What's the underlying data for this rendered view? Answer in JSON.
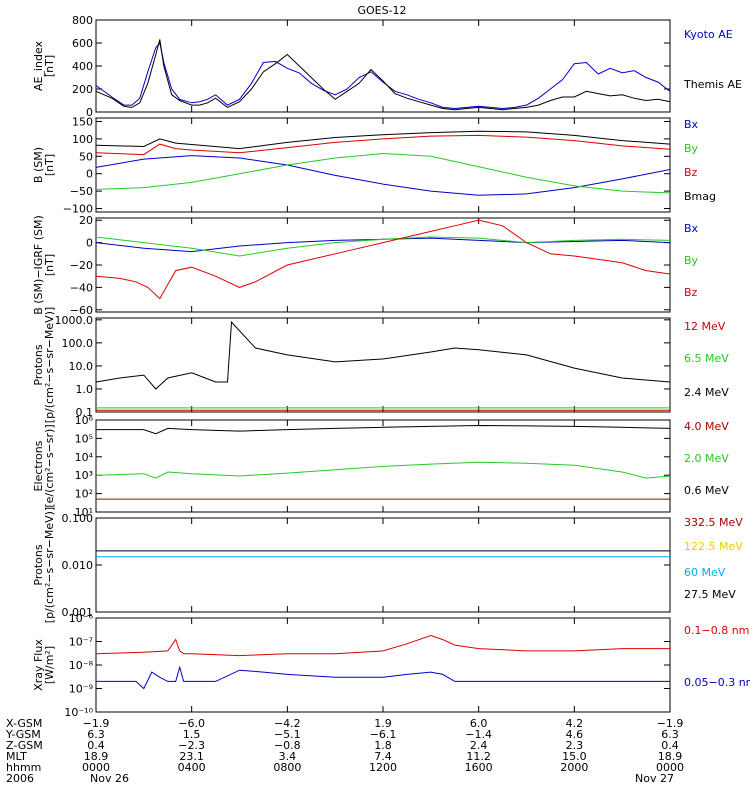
{
  "title": "GOES-12",
  "chart_data": [
    {
      "type": "line",
      "ylabel": [
        "AE_index",
        "[nT]"
      ],
      "ylim": [
        0,
        800
      ],
      "yscale": "linear",
      "yticks": [
        {
          "v": 0,
          "t": "0"
        },
        {
          "v": 200,
          "t": "200"
        },
        {
          "v": 400,
          "t": "400"
        },
        {
          "v": 600,
          "t": "600"
        },
        {
          "v": 800,
          "t": "800"
        }
      ],
      "series": [
        {
          "name": "Kyoto AE",
          "color": "#0000cc",
          "x": [
            0,
            40,
            70,
            90,
            110,
            130,
            150,
            160,
            170,
            190,
            210,
            240,
            260,
            280,
            300,
            330,
            360,
            390,
            420,
            450,
            480,
            510,
            540,
            570,
            600,
            630,
            660,
            690,
            720,
            750,
            780,
            810,
            840,
            870,
            900,
            930,
            960,
            990,
            1020,
            1050,
            1080,
            1110,
            1140,
            1170,
            1200,
            1230,
            1260,
            1290,
            1320,
            1350,
            1380,
            1410,
            1440
          ],
          "y": [
            230,
            130,
            60,
            60,
            120,
            350,
            560,
            600,
            430,
            200,
            110,
            80,
            90,
            110,
            150,
            60,
            110,
            250,
            430,
            440,
            380,
            340,
            250,
            190,
            150,
            200,
            300,
            350,
            260,
            180,
            150,
            110,
            80,
            40,
            30,
            40,
            50,
            40,
            30,
            40,
            60,
            120,
            200,
            280,
            420,
            430,
            330,
            380,
            340,
            360,
            300,
            260,
            180
          ]
        },
        {
          "name": "Themis AE",
          "color": "#000000",
          "x": [
            0,
            40,
            70,
            90,
            110,
            130,
            150,
            160,
            170,
            190,
            210,
            240,
            260,
            280,
            300,
            330,
            360,
            390,
            420,
            450,
            480,
            510,
            540,
            570,
            600,
            630,
            660,
            690,
            720,
            750,
            780,
            810,
            840,
            870,
            900,
            930,
            960,
            990,
            1020,
            1050,
            1080,
            1110,
            1140,
            1170,
            1200,
            1230,
            1260,
            1290,
            1320,
            1350,
            1380,
            1410,
            1440
          ],
          "y": [
            180,
            120,
            50,
            40,
            80,
            250,
            500,
            630,
            400,
            150,
            100,
            60,
            60,
            80,
            120,
            40,
            90,
            200,
            350,
            420,
            500,
            400,
            300,
            200,
            110,
            180,
            250,
            370,
            270,
            160,
            120,
            90,
            60,
            30,
            20,
            30,
            40,
            30,
            20,
            30,
            40,
            60,
            100,
            130,
            130,
            180,
            160,
            140,
            150,
            120,
            100,
            110,
            90
          ]
        }
      ]
    },
    {
      "type": "line",
      "ylabel": [
        "B (SM)",
        "[nT]"
      ],
      "ylim": [
        -110,
        160
      ],
      "yscale": "linear",
      "yticks": [
        {
          "v": -100,
          "t": "−100"
        },
        {
          "v": -50,
          "t": "−50"
        },
        {
          "v": 0,
          "t": "0"
        },
        {
          "v": 50,
          "t": "50"
        },
        {
          "v": 100,
          "t": "100"
        },
        {
          "v": 150,
          "t": "150"
        }
      ],
      "series": [
        {
          "name": "Bx",
          "color": "#0000cc",
          "x": [
            0,
            120,
            240,
            360,
            480,
            600,
            720,
            840,
            960,
            1080,
            1200,
            1320,
            1440
          ],
          "y": [
            18,
            42,
            52,
            45,
            25,
            -5,
            -30,
            -50,
            -62,
            -58,
            -40,
            -15,
            12
          ]
        },
        {
          "name": "By",
          "color": "#22cc22",
          "x": [
            0,
            120,
            240,
            360,
            480,
            600,
            720,
            840,
            960,
            1080,
            1200,
            1320,
            1440
          ],
          "y": [
            -45,
            -40,
            -25,
            0,
            25,
            45,
            58,
            50,
            20,
            -10,
            -35,
            -50,
            -55
          ]
        },
        {
          "name": "Bz",
          "color": "#dd0000",
          "x": [
            0,
            120,
            160,
            200,
            240,
            360,
            480,
            600,
            720,
            840,
            960,
            1080,
            1200,
            1320,
            1440
          ],
          "y": [
            60,
            55,
            85,
            72,
            68,
            60,
            75,
            90,
            100,
            108,
            110,
            105,
            95,
            80,
            70
          ]
        },
        {
          "name": "Bmag",
          "color": "#000000",
          "x": [
            0,
            120,
            160,
            200,
            240,
            360,
            480,
            600,
            720,
            840,
            960,
            1080,
            1200,
            1320,
            1440
          ],
          "y": [
            82,
            78,
            100,
            88,
            84,
            72,
            90,
            104,
            112,
            118,
            122,
            120,
            110,
            95,
            85
          ]
        }
      ]
    },
    {
      "type": "line",
      "ylabel": [
        "B (SM)−IGRF (SM)",
        "[nT]"
      ],
      "ylim": [
        -62,
        22
      ],
      "yscale": "linear",
      "yticks": [
        {
          "v": -60,
          "t": "−60"
        },
        {
          "v": -40,
          "t": "−40"
        },
        {
          "v": -20,
          "t": "−20"
        },
        {
          "v": 0,
          "t": "0"
        },
        {
          "v": 20,
          "t": "20"
        }
      ],
      "series": [
        {
          "name": "Bx",
          "color": "#0000cc",
          "x": [
            0,
            120,
            240,
            360,
            480,
            600,
            720,
            840,
            960,
            1080,
            1200,
            1320,
            1440
          ],
          "y": [
            0,
            -5,
            -8,
            -3,
            0,
            2,
            3,
            4,
            2,
            0,
            1,
            2,
            0
          ]
        },
        {
          "name": "By",
          "color": "#22cc22",
          "x": [
            0,
            120,
            240,
            360,
            480,
            600,
            720,
            840,
            960,
            1080,
            1200,
            1320,
            1440
          ],
          "y": [
            5,
            0,
            -5,
            -12,
            -5,
            0,
            3,
            5,
            4,
            0,
            2,
            3,
            2
          ]
        },
        {
          "name": "Bz",
          "color": "#dd0000",
          "x": [
            0,
            60,
            100,
            130,
            160,
            200,
            240,
            300,
            360,
            400,
            480,
            600,
            720,
            840,
            900,
            960,
            1020,
            1080,
            1140,
            1200,
            1260,
            1320,
            1380,
            1440
          ],
          "y": [
            -30,
            -32,
            -35,
            -40,
            -50,
            -25,
            -22,
            -30,
            -40,
            -35,
            -20,
            -10,
            0,
            10,
            15,
            20,
            15,
            0,
            -10,
            -12,
            -15,
            -18,
            -25,
            -28
          ]
        }
      ]
    },
    {
      "type": "line",
      "ylabel": [
        "Protons",
        "[p/(cm²−s−sr−MeV)]"
      ],
      "ylim": [
        0.1,
        1200
      ],
      "yscale": "log",
      "yticks": [
        {
          "v": 0.1,
          "t": "0.1"
        },
        {
          "v": 1,
          "t": "1.0"
        },
        {
          "v": 10,
          "t": "10.0"
        },
        {
          "v": 100,
          "t": "100.0"
        },
        {
          "v": 1000,
          "t": "1000.0"
        }
      ],
      "series": [
        {
          "name": "12 MeV",
          "color": "#cc0000",
          "x": [
            0,
            1440
          ],
          "y": [
            0.12,
            0.12
          ]
        },
        {
          "name": "6.5 MeV",
          "color": "#22cc22",
          "x": [
            0,
            1440
          ],
          "y": [
            0.15,
            0.15
          ]
        },
        {
          "name": "2.4 MeV",
          "color": "#000000",
          "x": [
            0,
            60,
            120,
            150,
            180,
            240,
            300,
            330,
            340,
            400,
            480,
            600,
            720,
            840,
            900,
            960,
            1080,
            1200,
            1320,
            1440
          ],
          "y": [
            2,
            3,
            4,
            1,
            3,
            5,
            2,
            2,
            800,
            60,
            30,
            15,
            20,
            40,
            60,
            50,
            30,
            8,
            3,
            2
          ]
        }
      ]
    },
    {
      "type": "line",
      "ylabel": [
        "Electrons",
        "[e/(cm²−s−sr)]"
      ],
      "ylim": [
        10,
        1000000
      ],
      "yscale": "log",
      "yticks": [
        {
          "v": 10,
          "t": "10¹"
        },
        {
          "v": 100,
          "t": "10²"
        },
        {
          "v": 1000,
          "t": "10³"
        },
        {
          "v": 10000,
          "t": "10⁴"
        },
        {
          "v": 100000,
          "t": "10⁵"
        },
        {
          "v": 1000000,
          "t": "10⁶"
        }
      ],
      "series": [
        {
          "name": "4.0 MeV",
          "color": "#aa0000",
          "x": [
            0,
            1440
          ],
          "y": [
            50,
            50
          ]
        },
        {
          "name": "2.0 MeV",
          "color": "#22cc22",
          "x": [
            0,
            120,
            150,
            180,
            240,
            360,
            480,
            600,
            720,
            840,
            960,
            1080,
            1200,
            1320,
            1380,
            1440
          ],
          "y": [
            1000,
            1200,
            700,
            1500,
            1200,
            900,
            1300,
            2000,
            3000,
            4000,
            5000,
            4500,
            3500,
            1500,
            700,
            900
          ]
        },
        {
          "name": "0.6 MeV",
          "color": "#000000",
          "x": [
            0,
            120,
            150,
            180,
            240,
            360,
            480,
            600,
            720,
            840,
            960,
            1080,
            1200,
            1320,
            1440
          ],
          "y": [
            300000,
            300000,
            180000,
            350000,
            300000,
            250000,
            300000,
            350000,
            400000,
            450000,
            500000,
            480000,
            450000,
            400000,
            350000
          ]
        }
      ]
    },
    {
      "type": "line",
      "ylabel": [
        "Protons",
        "[p/(cm²−s−sr−MeV)]"
      ],
      "ylim": [
        0.001,
        0.1
      ],
      "yscale": "log",
      "yticks": [
        {
          "v": 0.001,
          "t": "0.001"
        },
        {
          "v": 0.01,
          "t": "0.010"
        },
        {
          "v": 0.1,
          "t": "0.100"
        }
      ],
      "series": [
        {
          "name": "332.5 MeV",
          "color": "#aa0000",
          "x": [],
          "y": []
        },
        {
          "name": "122.5 MeV",
          "color": "#eecc00",
          "x": [],
          "y": []
        },
        {
          "name": "60 MeV",
          "color": "#00aaee",
          "x": [
            0,
            1440
          ],
          "y": [
            0.015,
            0.015
          ]
        },
        {
          "name": "27.5 MeV",
          "color": "#000000",
          "x": [
            0,
            1440
          ],
          "y": [
            0.02,
            0.02
          ]
        }
      ]
    },
    {
      "type": "line",
      "ylabel": [
        "Xray Flux",
        "[W/m²]"
      ],
      "ylim": [
        1e-10,
        1e-06
      ],
      "yscale": "log",
      "yticks": [
        {
          "v": 1e-10,
          "t": "10⁻¹⁰"
        },
        {
          "v": 1e-09,
          "t": "10⁻⁹"
        },
        {
          "v": 1e-08,
          "t": "10⁻⁸"
        },
        {
          "v": 1e-07,
          "t": "10⁻⁷"
        },
        {
          "v": 1e-06,
          "t": "10⁻⁶"
        }
      ],
      "series": [
        {
          "name": "0.1−0.8 nm",
          "color": "#dd0000",
          "x": [
            0,
            120,
            180,
            200,
            210,
            220,
            240,
            360,
            480,
            600,
            720,
            780,
            840,
            870,
            900,
            960,
            1080,
            1200,
            1320,
            1440
          ],
          "y": [
            3e-08,
            3.5e-08,
            4e-08,
            1.2e-07,
            4e-08,
            3e-08,
            3e-08,
            2.5e-08,
            3e-08,
            3e-08,
            4e-08,
            8e-08,
            1.8e-07,
            1.2e-07,
            7e-08,
            5e-08,
            4e-08,
            4e-08,
            5e-08,
            5e-08
          ]
        },
        {
          "name": "0.05−0.3 nm",
          "color": "#0000cc",
          "x": [
            0,
            60,
            100,
            120,
            140,
            160,
            180,
            200,
            210,
            220,
            240,
            300,
            360,
            420,
            480,
            600,
            720,
            780,
            840,
            870,
            900,
            960,
            1080,
            1200,
            1320,
            1440
          ],
          "y": [
            2e-09,
            2e-09,
            2e-09,
            1e-09,
            5e-09,
            3e-09,
            2e-09,
            2e-09,
            8e-09,
            2e-09,
            2e-09,
            2e-09,
            6e-09,
            5e-09,
            4e-09,
            3e-09,
            3e-09,
            4e-09,
            5e-09,
            4e-09,
            2e-09,
            2e-09,
            2e-09,
            2e-09,
            2e-09,
            2e-09
          ]
        }
      ]
    }
  ],
  "orbit_table": {
    "rows": [
      {
        "label": "X-GSM",
        "values": [
          "−1.9",
          "−6.0",
          "−4.2",
          "1.9",
          "6.0",
          "4.2",
          "−1.9"
        ]
      },
      {
        "label": "Y-GSM",
        "values": [
          "6.3",
          "1.5",
          "−5.1",
          "−6.1",
          "−1.4",
          "4.6",
          "6.3"
        ]
      },
      {
        "label": "Z-GSM",
        "values": [
          "0.4",
          "−2.3",
          "−0.8",
          "1.8",
          "2.4",
          "2.3",
          "0.4"
        ]
      },
      {
        "label": "MLT",
        "values": [
          "18.9",
          "23.1",
          "3.4",
          "7.4",
          "11.2",
          "15.0",
          "18.9"
        ]
      },
      {
        "label": "hhmm",
        "values": [
          "0000",
          "0400",
          "0800",
          "1200",
          "1600",
          "2000",
          "0000"
        ]
      },
      {
        "label": "2006",
        "values": [
          "Nov 26",
          "",
          "",
          "",
          "",
          "",
          "Nov 27"
        ]
      }
    ]
  }
}
